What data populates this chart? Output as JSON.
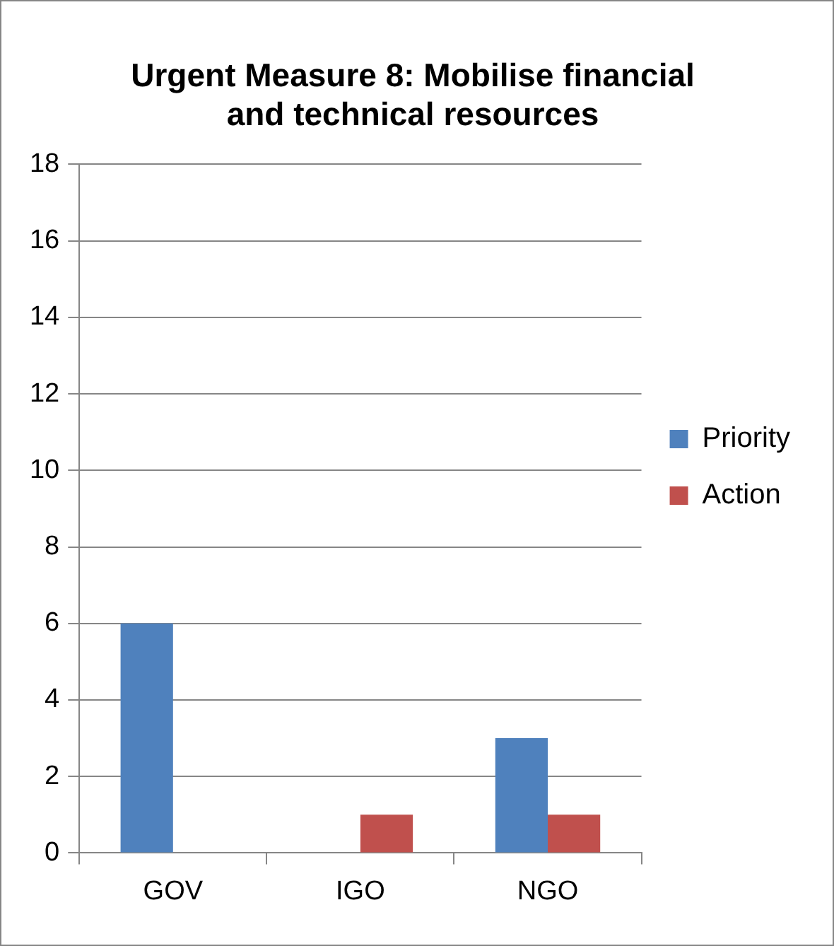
{
  "chart_data": {
    "type": "bar",
    "title": "Urgent Measure 8: Mobilise financial and technical resources",
    "categories": [
      "GOV",
      "IGO",
      "NGO"
    ],
    "series": [
      {
        "name": "Priority",
        "color": "#4f81bd",
        "values": [
          6,
          0,
          3
        ]
      },
      {
        "name": "Action",
        "color": "#c0504d",
        "values": [
          0,
          1,
          1
        ]
      }
    ],
    "ylim": [
      0,
      18
    ],
    "yticks": [
      0,
      2,
      4,
      6,
      8,
      10,
      12,
      14,
      16,
      18
    ],
    "grid": "y",
    "legend": "right"
  }
}
